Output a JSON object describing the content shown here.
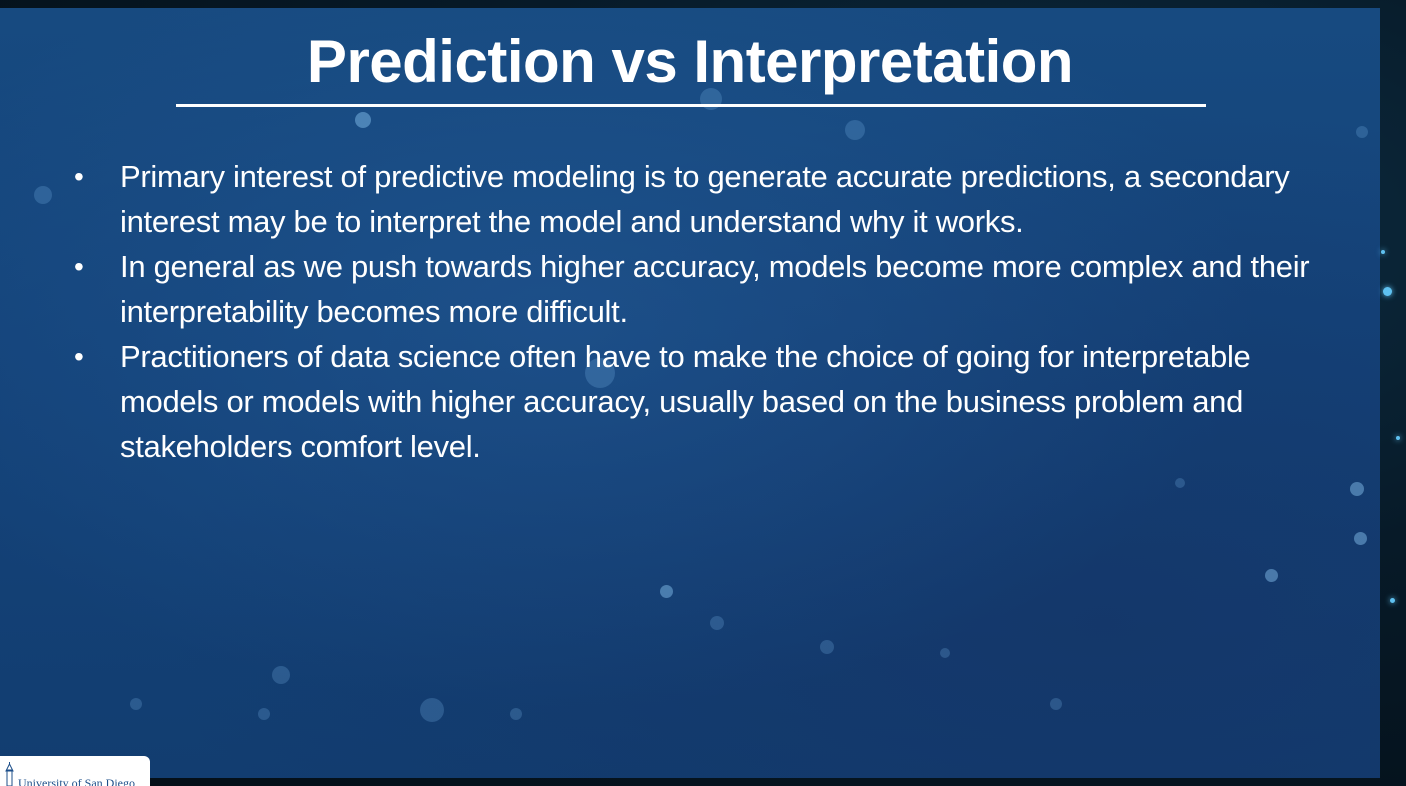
{
  "slide": {
    "title": "Prediction vs Interpretation",
    "bullet_glyph": "•",
    "bullets": [
      "Primary interest of predictive modeling is to generate accurate predictions, a secondary interest may be to interpret the model and understand why it works.",
      "In general as we push towards higher accuracy, models become more complex and their interpretability becomes more difficult.",
      "Practitioners of data science often have to make the choice of going for interpretable models or models with higher accuracy, usually based on the business problem and stakeholders comfort level."
    ]
  },
  "logo": {
    "text": "University of San Diego",
    "icon": "university-tower-icon"
  },
  "colors": {
    "slide_background": "#14437a",
    "text": "#ffffff",
    "logo_text": "#1d4f8a",
    "accent_star": "#5fc1f0"
  }
}
